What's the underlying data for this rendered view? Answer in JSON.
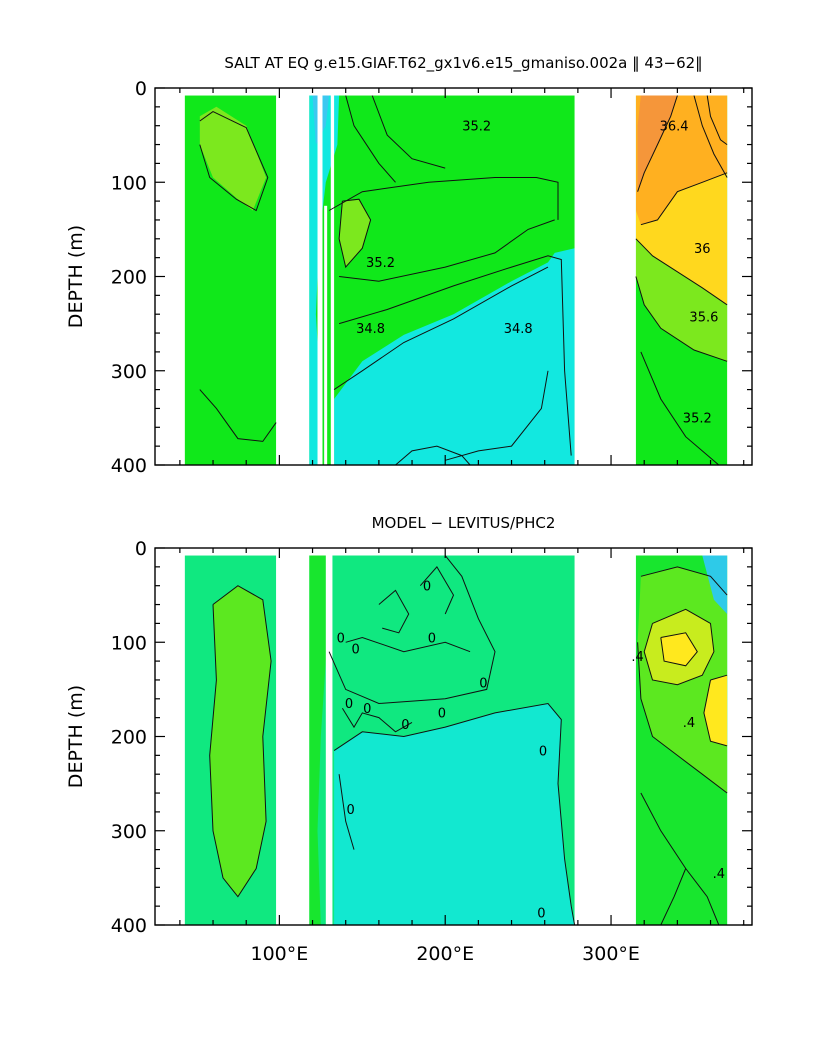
{
  "chart_data": [
    {
      "type": "heatmap",
      "title": "SALT AT EQ g.e15.GIAF.T62_gx1v6.e15_gmaniso.002a  ‖ 43−62‖",
      "xlabel": "",
      "ylabel": "DEPTH (m)",
      "xlim": [
        25,
        385
      ],
      "ylim": [
        400,
        0
      ],
      "xticks": [
        100,
        200,
        300
      ],
      "xtick_labels": [
        "",
        "",
        ""
      ],
      "yticks": [
        0,
        100,
        200,
        300,
        400
      ],
      "ytick_labels": [
        "0",
        "100",
        "200",
        "300",
        "400"
      ],
      "land_gaps_lon": [
        [
          98,
          118
        ],
        [
          123,
          126
        ],
        [
          131,
          133
        ],
        [
          278,
          315
        ]
      ],
      "data_lon_range": [
        43,
        370
      ],
      "contour_labels": [
        {
          "text": "35.2",
          "lon": 219,
          "depth": 45
        },
        {
          "text": "36.4",
          "lon": 338,
          "depth": 45
        },
        {
          "text": "36",
          "lon": 355,
          "depth": 175
        },
        {
          "text": "35.2",
          "lon": 161,
          "depth": 190
        },
        {
          "text": "35.6",
          "lon": 356,
          "depth": 248
        },
        {
          "text": "34.8",
          "lon": 155,
          "depth": 260
        },
        {
          "text": "34.8",
          "lon": 244,
          "depth": 260
        },
        {
          "text": "35.2",
          "lon": 352,
          "depth": 355
        }
      ],
      "color_regions": [
        {
          "value": 35.0,
          "color": "#10e81a"
        },
        {
          "value": 34.8,
          "color": "#12e8e0"
        },
        {
          "value": 35.4,
          "color": "#7ce81e"
        },
        {
          "value": 35.8,
          "color": "#ffd81e"
        },
        {
          "value": 36.2,
          "color": "#ffb020"
        },
        {
          "value": 36.6,
          "color": "#f5963a"
        }
      ]
    },
    {
      "type": "heatmap",
      "title": "MODEL − LEVITUS/PHC2",
      "xlabel": "",
      "ylabel": "DEPTH (m)",
      "xlim": [
        25,
        385
      ],
      "ylim": [
        400,
        0
      ],
      "xticks": [
        100,
        200,
        300
      ],
      "xtick_labels": [
        "100°E",
        "200°E",
        "300°E"
      ],
      "yticks": [
        0,
        100,
        200,
        300,
        400
      ],
      "ytick_labels": [
        "0",
        "100",
        "200",
        "300",
        "400"
      ],
      "land_gaps_lon": [
        [
          98,
          118
        ],
        [
          128,
          132
        ],
        [
          278,
          315
        ]
      ],
      "data_lon_range": [
        43,
        370
      ],
      "contour_labels": [
        {
          "text": "0",
          "lon": 189,
          "depth": 45
        },
        {
          "text": "0",
          "lon": 137,
          "depth": 100
        },
        {
          "text": "0",
          "lon": 146,
          "depth": 112
        },
        {
          "text": "0",
          "lon": 192,
          "depth": 100
        },
        {
          "text": "0",
          "lon": 223,
          "depth": 148
        },
        {
          "text": "0",
          "lon": 142,
          "depth": 170
        },
        {
          "text": "0",
          "lon": 153,
          "depth": 175
        },
        {
          "text": "0",
          "lon": 198,
          "depth": 180
        },
        {
          "text": "0",
          "lon": 176,
          "depth": 192
        },
        {
          "text": ".4",
          "lon": 316,
          "depth": 120
        },
        {
          "text": ".4",
          "lon": 347,
          "depth": 190
        },
        {
          "text": "0",
          "lon": 259,
          "depth": 220
        },
        {
          "text": "0",
          "lon": 143,
          "depth": 282
        },
        {
          "text": ".4",
          "lon": 365,
          "depth": 350
        },
        {
          "text": "0",
          "lon": 258,
          "depth": 392
        }
      ],
      "color_regions": [
        {
          "value": 0.0,
          "color": "#10e880"
        },
        {
          "value": 0.2,
          "color": "#18e62e"
        },
        {
          "value": -0.2,
          "color": "#12e8d0"
        },
        {
          "value": 0.4,
          "color": "#5ce820"
        },
        {
          "value": 0.6,
          "color": "#c8ec1e"
        },
        {
          "value": 0.8,
          "color": "#ffe81e"
        }
      ]
    }
  ]
}
